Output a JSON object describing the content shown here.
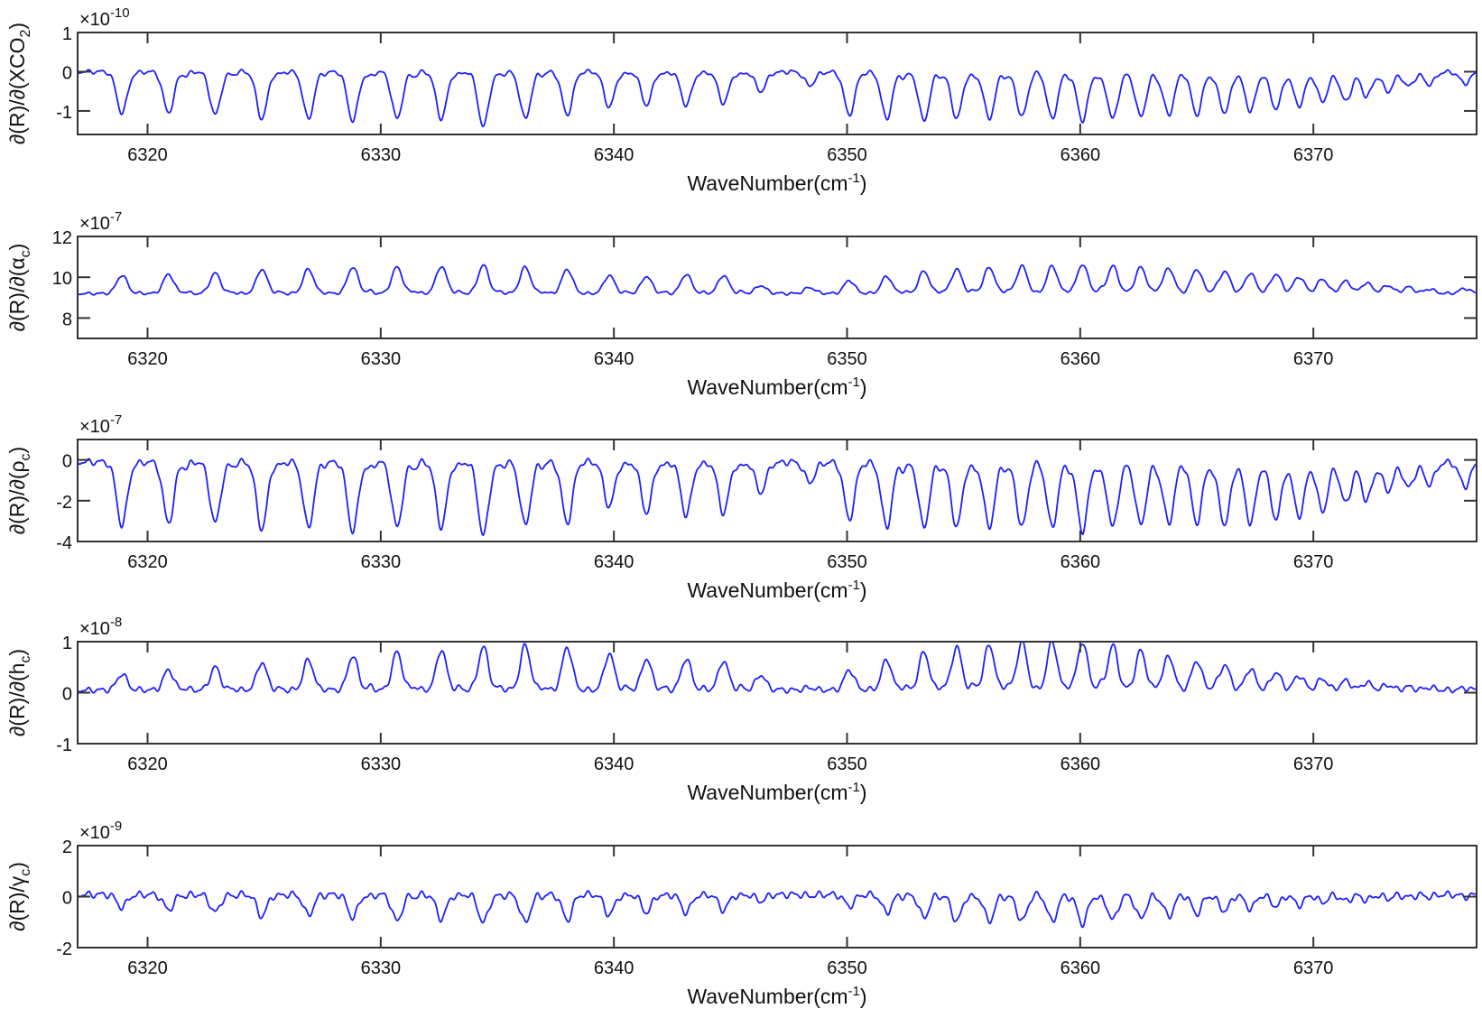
{
  "figure": {
    "line_color": "#1f1fff",
    "axis_color": "#333333",
    "background": "#ffffff"
  },
  "chart_data": [
    {
      "type": "line",
      "title": "",
      "xlabel": "WaveNumber(cm^-1)",
      "xlabel_main": "WaveNumber(cm",
      "xlabel_sup": "-1",
      "xlabel_end": ")",
      "ylabel": "∂(R)/∂(XCO2)",
      "ylabel_main": "∂(R)/∂(XCO",
      "ylabel_sub": "2",
      "ylabel_end": ")",
      "y_exponent_label": "×10",
      "y_exponent": "-10",
      "xlim": [
        6317,
        6377
      ],
      "ylim": [
        -1.6,
        1
      ],
      "xticks": [
        6320,
        6330,
        6340,
        6350,
        6360,
        6370
      ],
      "xtick_labels": [
        "6320",
        "6330",
        "6340",
        "6350",
        "6360",
        "6370"
      ],
      "yticks": [
        1,
        0,
        -1
      ],
      "ytick_labels": [
        "1",
        "0",
        "-1"
      ],
      "grid": false,
      "baseline": 0,
      "ripple": 0.04,
      "lines_x": [
        6318.9,
        6320.9,
        6322.9,
        6324.9,
        6326.9,
        6328.8,
        6330.7,
        6332.6,
        6334.4,
        6336.2,
        6338.0,
        6339.8,
        6341.4,
        6343.1,
        6344.7,
        6346.3,
        6348.4,
        6350.1,
        6351.7,
        6353.3,
        6354.7,
        6356.1,
        6357.5,
        6358.8,
        6360.1,
        6361.4,
        6362.6,
        6363.8,
        6365.0,
        6366.2,
        6367.3,
        6368.4,
        6369.4,
        6370.4,
        6371.4,
        6372.3,
        6373.2,
        6374.1,
        6375.0,
        6376.5
      ],
      "lines_amp": [
        -1.05,
        -1.05,
        -1.1,
        -1.2,
        -1.2,
        -1.25,
        -1.2,
        -1.2,
        -1.4,
        -1.2,
        -1.1,
        -0.9,
        -0.85,
        -0.85,
        -0.8,
        -0.5,
        -0.35,
        -1.1,
        -1.2,
        -1.25,
        -1.2,
        -1.2,
        -1.15,
        -1.2,
        -1.25,
        -1.2,
        -1.15,
        -1.1,
        -1.1,
        -1.05,
        -1.0,
        -0.95,
        -0.85,
        -0.75,
        -0.75,
        -0.6,
        -0.5,
        -0.35,
        -0.3,
        -0.3
      ],
      "line_width": 0.32
    },
    {
      "type": "line",
      "title": "",
      "xlabel": "WaveNumber(cm^-1)",
      "xlabel_main": "WaveNumber(cm",
      "xlabel_sup": "-1",
      "xlabel_end": ")",
      "ylabel": "∂(R)/∂(αc)",
      "ylabel_main": "∂(R)/∂(α",
      "ylabel_sub": "c",
      "ylabel_end": ")",
      "y_exponent_label": "×10",
      "y_exponent": "-7",
      "xlim": [
        6317,
        6377
      ],
      "ylim": [
        7,
        12
      ],
      "xticks": [
        6320,
        6330,
        6340,
        6350,
        6360,
        6370
      ],
      "xtick_labels": [
        "6320",
        "6330",
        "6340",
        "6350",
        "6360",
        "6370"
      ],
      "yticks": [
        12,
        10,
        8
      ],
      "ytick_labels": [
        "12",
        "10",
        "8"
      ],
      "grid": false,
      "baseline": 9.2,
      "ripple": 0.05,
      "lines_x": [
        6318.9,
        6320.9,
        6322.9,
        6324.9,
        6326.9,
        6328.8,
        6330.7,
        6332.6,
        6334.4,
        6336.2,
        6338.0,
        6339.8,
        6341.4,
        6343.1,
        6344.7,
        6346.3,
        6348.4,
        6350.1,
        6351.7,
        6353.3,
        6354.7,
        6356.1,
        6357.5,
        6358.8,
        6360.1,
        6361.4,
        6362.6,
        6363.8,
        6365.0,
        6366.2,
        6367.3,
        6368.4,
        6369.4,
        6370.4,
        6371.4,
        6372.3,
        6373.2,
        6374.1,
        6375.0,
        6376.5
      ],
      "lines_amp": [
        0.9,
        0.95,
        1.0,
        1.2,
        1.2,
        1.3,
        1.3,
        1.35,
        1.4,
        1.3,
        1.2,
        0.9,
        0.85,
        0.95,
        0.9,
        0.4,
        0.3,
        0.65,
        0.85,
        1.1,
        1.2,
        1.3,
        1.35,
        1.35,
        1.45,
        1.35,
        1.3,
        1.25,
        1.2,
        1.1,
        1.0,
        0.95,
        0.8,
        0.7,
        0.6,
        0.5,
        0.4,
        0.3,
        0.2,
        0.25
      ],
      "line_width": 0.32
    },
    {
      "type": "line",
      "title": "",
      "xlabel": "WaveNumber(cm^-1)",
      "xlabel_main": "WaveNumber(cm",
      "xlabel_sup": "-1",
      "xlabel_end": ")",
      "ylabel": "∂(R)/∂(ρc)",
      "ylabel_main": "∂(R)/∂(ρ",
      "ylabel_sub": "c",
      "ylabel_end": ")",
      "y_exponent_label": "×10",
      "y_exponent": "-7",
      "xlim": [
        6317,
        6377
      ],
      "ylim": [
        -4,
        1
      ],
      "xticks": [
        6320,
        6330,
        6340,
        6350,
        6360,
        6370
      ],
      "xtick_labels": [
        "6320",
        "6330",
        "6340",
        "6350",
        "6360",
        "6370"
      ],
      "yticks": [
        0,
        -2,
        -4
      ],
      "ytick_labels": [
        "0",
        "-2",
        "-4"
      ],
      "grid": false,
      "baseline": -0.1,
      "ripple": 0.12,
      "lines_x": [
        6318.9,
        6320.9,
        6322.9,
        6324.9,
        6326.9,
        6328.8,
        6330.7,
        6332.6,
        6334.4,
        6336.2,
        6338.0,
        6339.8,
        6341.4,
        6343.1,
        6344.7,
        6346.3,
        6348.4,
        6350.1,
        6351.7,
        6353.3,
        6354.7,
        6356.1,
        6357.5,
        6358.8,
        6360.1,
        6361.4,
        6362.6,
        6363.8,
        6365.0,
        6366.2,
        6367.3,
        6368.4,
        6369.4,
        6370.4,
        6371.4,
        6372.3,
        6373.2,
        6374.1,
        6375.0,
        6376.5
      ],
      "lines_amp": [
        -3.1,
        -3.0,
        -3.0,
        -3.3,
        -3.2,
        -3.4,
        -3.2,
        -3.2,
        -3.6,
        -3.1,
        -3.0,
        -2.2,
        -2.5,
        -2.6,
        -2.5,
        -1.5,
        -1.0,
        -2.8,
        -3.2,
        -3.2,
        -3.2,
        -3.2,
        -3.2,
        -3.2,
        -3.4,
        -3.2,
        -3.1,
        -3.0,
        -3.0,
        -3.1,
        -3.0,
        -2.8,
        -2.6,
        -2.4,
        -2.0,
        -1.8,
        -1.4,
        -1.2,
        -1.0,
        -1.2
      ],
      "line_width": 0.32
    },
    {
      "type": "line",
      "title": "",
      "xlabel": "WaveNumber(cm^-1)",
      "xlabel_main": "WaveNumber(cm",
      "xlabel_sup": "-1",
      "xlabel_end": ")",
      "ylabel": "∂(R)/∂(hc)",
      "ylabel_main": "∂(R)/∂(h",
      "ylabel_sub": "c",
      "ylabel_end": ")",
      "y_exponent_label": "×10",
      "y_exponent": "-8",
      "xlim": [
        6317,
        6377
      ],
      "ylim": [
        -1,
        1
      ],
      "xticks": [
        6320,
        6330,
        6340,
        6350,
        6360,
        6370
      ],
      "xtick_labels": [
        "6320",
        "6330",
        "6340",
        "6350",
        "6360",
        "6370"
      ],
      "yticks": [
        1,
        0,
        -1
      ],
      "ytick_labels": [
        "1",
        "0",
        "-1"
      ],
      "grid": false,
      "baseline": 0.05,
      "ripple": 0.04,
      "lines_x": [
        6318.9,
        6320.9,
        6322.9,
        6324.9,
        6326.9,
        6328.8,
        6330.7,
        6332.6,
        6334.4,
        6336.2,
        6338.0,
        6339.8,
        6341.4,
        6343.1,
        6344.7,
        6346.3,
        6348.4,
        6350.1,
        6351.7,
        6353.3,
        6354.7,
        6356.1,
        6357.5,
        6358.8,
        6360.1,
        6361.4,
        6362.6,
        6363.8,
        6365.0,
        6366.2,
        6367.3,
        6368.4,
        6369.4,
        6370.4,
        6371.4,
        6372.3,
        6373.2,
        6374.1,
        6375.0,
        6376.5
      ],
      "lines_amp": [
        0.32,
        0.4,
        0.45,
        0.55,
        0.6,
        0.68,
        0.75,
        0.8,
        0.85,
        0.88,
        0.85,
        0.72,
        0.62,
        0.62,
        0.58,
        0.3,
        0.05,
        0.4,
        0.6,
        0.75,
        0.85,
        0.9,
        0.95,
        0.95,
        0.95,
        0.88,
        0.78,
        0.68,
        0.58,
        0.5,
        0.42,
        0.35,
        0.28,
        0.22,
        0.18,
        0.14,
        0.1,
        0.06,
        0.05,
        0.04
      ],
      "line_width": 0.3
    },
    {
      "type": "line",
      "title": "",
      "xlabel": "WaveNumber(cm^-1)",
      "xlabel_main": "WaveNumber(cm",
      "xlabel_sup": "-1",
      "xlabel_end": ")",
      "ylabel": "∂(R)/γc",
      "ylabel_main": "∂(R)/γ",
      "ylabel_sub": "c",
      "ylabel_end": ")",
      "y_exponent_label": "×10",
      "y_exponent": "-9",
      "xlim": [
        6317,
        6377
      ],
      "ylim": [
        -2,
        2
      ],
      "xticks": [
        6320,
        6330,
        6340,
        6350,
        6360,
        6370
      ],
      "xtick_labels": [
        "6320",
        "6330",
        "6340",
        "6350",
        "6360",
        "6370"
      ],
      "yticks": [
        2,
        0,
        -2
      ],
      "ytick_labels": [
        "2",
        "0",
        "-2"
      ],
      "grid": false,
      "baseline": 0.08,
      "ripple": 0.1,
      "lines_x": [
        6318.9,
        6320.9,
        6322.9,
        6324.9,
        6326.9,
        6328.8,
        6330.7,
        6332.6,
        6334.4,
        6336.2,
        6338.0,
        6339.8,
        6341.4,
        6343.1,
        6344.7,
        6346.3,
        6348.4,
        6350.1,
        6351.7,
        6353.3,
        6354.7,
        6356.1,
        6357.5,
        6358.8,
        6360.1,
        6361.4,
        6362.6,
        6363.8,
        6365.0,
        6366.2,
        6367.3,
        6368.4,
        6369.4,
        6370.4,
        6371.4,
        6372.3,
        6373.2,
        6374.1,
        6375.0,
        6376.5
      ],
      "lines_amp": [
        -0.5,
        -0.6,
        -0.7,
        -0.85,
        -0.8,
        -0.9,
        -1.05,
        -0.95,
        -1.1,
        -1.1,
        -1.0,
        -0.8,
        -0.7,
        -0.7,
        -0.6,
        -0.25,
        -0.05,
        -0.45,
        -0.7,
        -0.9,
        -1.05,
        -1.05,
        -1.05,
        -1.05,
        -1.15,
        -1.0,
        -0.95,
        -0.85,
        -0.75,
        -0.65,
        -0.55,
        -0.45,
        -0.4,
        -0.3,
        -0.25,
        -0.2,
        -0.15,
        -0.1,
        -0.08,
        -0.08
      ],
      "line_width": 0.3
    }
  ]
}
